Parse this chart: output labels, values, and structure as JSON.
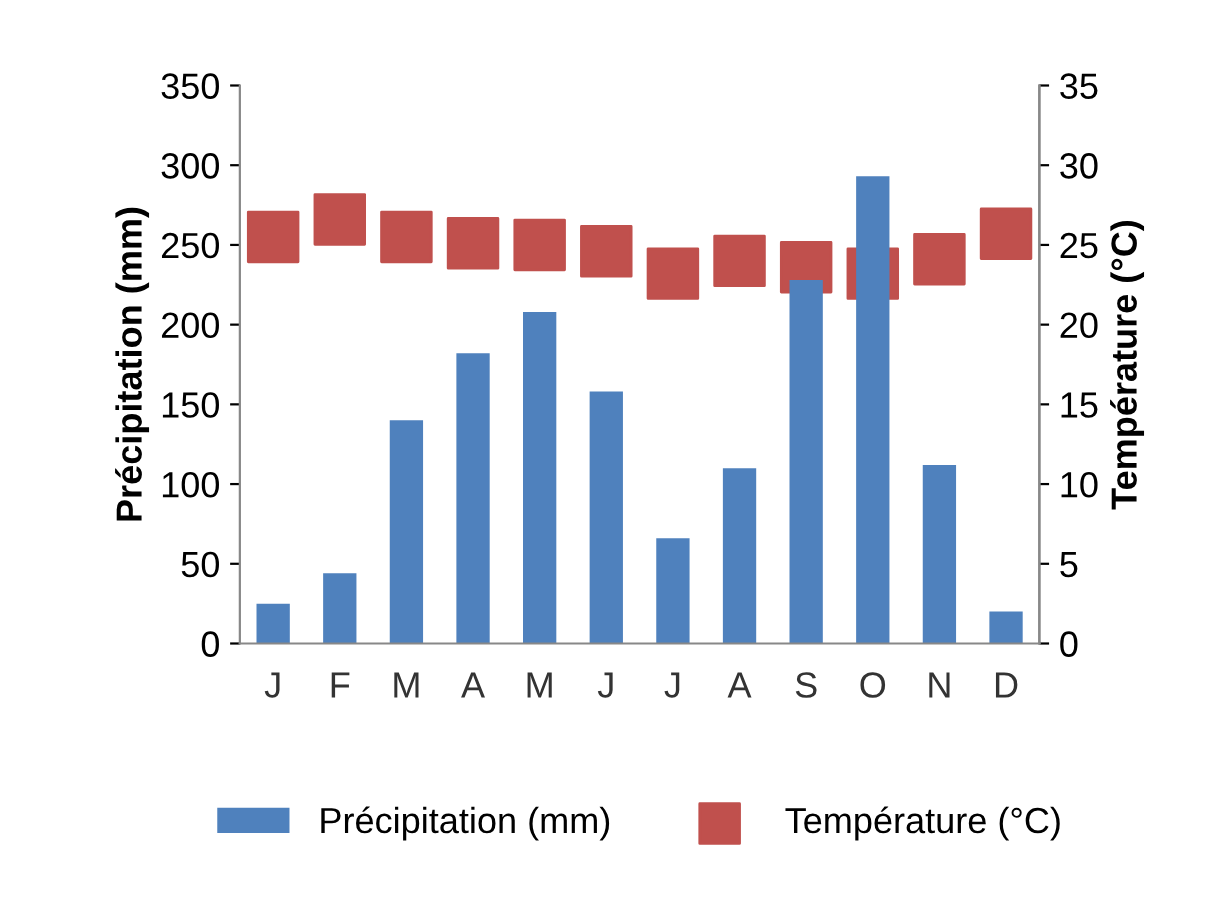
{
  "chart_data": {
    "type": "bar",
    "categories": [
      "J",
      "F",
      "M",
      "A",
      "M",
      "J",
      "J",
      "A",
      "S",
      "O",
      "N",
      "D"
    ],
    "ylabel": "Précipitation (mm)",
    "y2label": "Température (°C)",
    "series": [
      {
        "name": "Précipitation (mm)",
        "color": "#4f81bd",
        "values": [
          25,
          44,
          140,
          182,
          208,
          158,
          66,
          110,
          228,
          293,
          112,
          20
        ]
      },
      {
        "name": "Température (°C)",
        "type": "scatter",
        "axis": "y2",
        "marker": "square",
        "color": "#c0504d",
        "values": [
          25.5,
          26.6,
          25.5,
          25.1,
          25.0,
          24.6,
          23.2,
          24.0,
          23.6,
          23.2,
          24.1,
          25.7
        ]
      }
    ],
    "ylim": [
      0,
      350
    ],
    "yticks": [
      0,
      50,
      100,
      150,
      200,
      250,
      300,
      350
    ],
    "y2lim": [
      0,
      35
    ],
    "y2ticks": [
      0,
      5,
      10,
      15,
      20,
      25,
      30,
      35
    ],
    "grid": false,
    "legend": "bottom"
  }
}
